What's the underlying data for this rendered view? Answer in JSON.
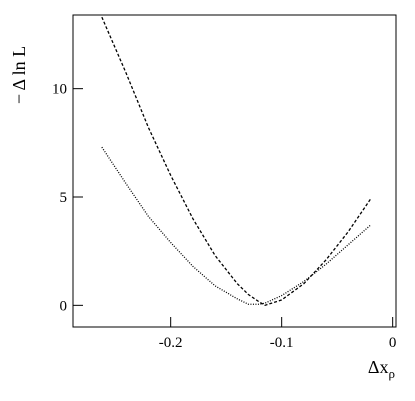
{
  "chart_data": {
    "type": "line",
    "xlabel": {
      "main": "Δx",
      "sub": "ρ"
    },
    "ylabel": "− Δ ln L",
    "x": [
      -0.262,
      -0.24,
      -0.22,
      -0.2,
      -0.18,
      -0.16,
      -0.14,
      -0.13,
      -0.12,
      -0.115,
      -0.1,
      -0.08,
      -0.06,
      -0.04,
      -0.02
    ],
    "series": [
      {
        "color": "#000000",
        "dash": "3,2",
        "values": [
          13.3,
          10.7,
          8.2,
          6.0,
          4.0,
          2.3,
          1.0,
          0.5,
          0.15,
          0,
          0.25,
          1.0,
          2.1,
          3.4,
          4.9
        ]
      },
      {
        "color": "#000000",
        "dash": "1,1.5",
        "values": [
          7.3,
          5.6,
          4.1,
          2.9,
          1.8,
          0.9,
          0.3,
          0.05,
          0.05,
          0.1,
          0.45,
          1.1,
          1.9,
          2.8,
          3.7
        ]
      }
    ],
    "xlim": [
      -0.288,
      0.003
    ],
    "ylim": [
      -1,
      13.4
    ],
    "xticks": [
      -0.2,
      -0.1,
      0
    ],
    "yticks": [
      0,
      5,
      10
    ],
    "grid": false
  }
}
